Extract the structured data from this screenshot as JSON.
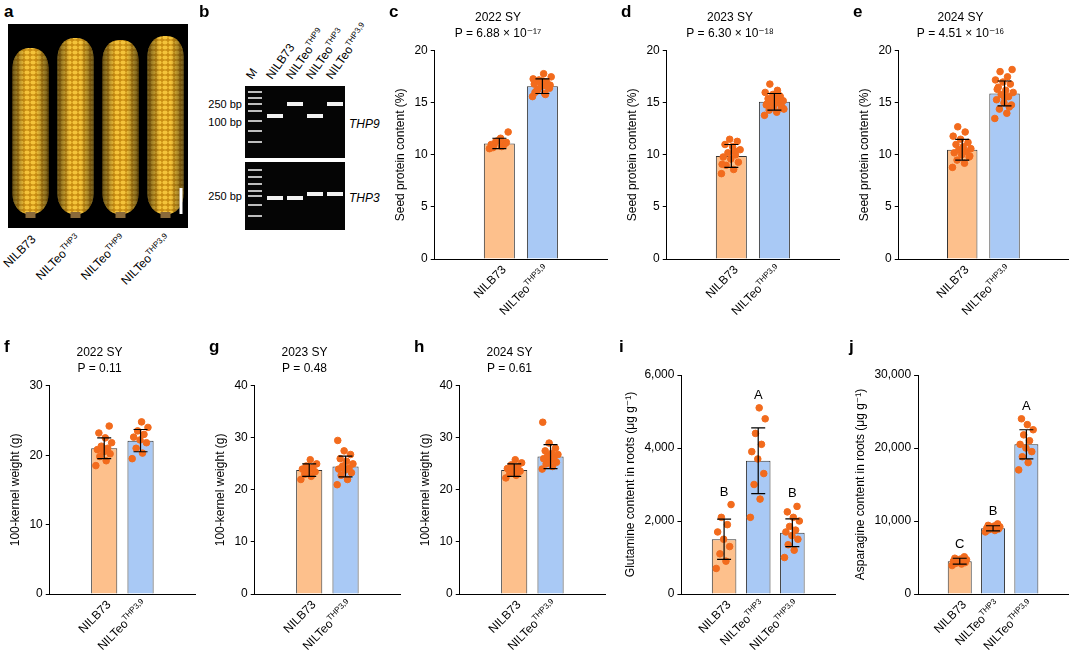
{
  "panel_a": {
    "panel": "a",
    "labels": [
      {
        "text": "NILB73"
      },
      {
        "text": "NILTeo",
        "sup": "THP3"
      },
      {
        "text": "NILTeo",
        "sup": "THP9"
      },
      {
        "text": "NILTeo",
        "sup": "THP3,9"
      }
    ]
  },
  "panel_b": {
    "panel": "b",
    "ladder_label": "M",
    "lanes": [
      {
        "text": "NILB73"
      },
      {
        "text": "NILTeo",
        "sup": "THP9"
      },
      {
        "text": "NILTeo",
        "sup": "THP3"
      },
      {
        "text": "NILTeo",
        "sup": "THP3,9"
      }
    ],
    "size_labels_top": [
      "250 bp",
      "100 bp"
    ],
    "size_labels_bottom": [
      "250 bp"
    ],
    "genes": [
      "THP9",
      "THP3"
    ]
  },
  "chart_data": [
    {
      "panel": "c",
      "type": "bar",
      "title": "2022 SY",
      "annotation": "P = 6.88 × 10⁻¹⁷",
      "y_label": "Seed protein content (%)",
      "categories": [
        {
          "text": "NILB73"
        },
        {
          "text": "NILTeo",
          "sup": "THP3,9"
        }
      ],
      "values": [
        11.1,
        16.6
      ],
      "errors": [
        0.5,
        0.7
      ],
      "points": [
        [
          10.6,
          10.8,
          11.0,
          11.2,
          11.4,
          11.0,
          10.9,
          11.3,
          12.2,
          11.6,
          10.7,
          11.1
        ],
        [
          15.6,
          15.9,
          16.2,
          16.4,
          16.6,
          16.8,
          17.0,
          17.2,
          17.5,
          17.8,
          16.1,
          16.5,
          16.9,
          17.3,
          15.8,
          16.3,
          16.7,
          17.1,
          16.0,
          16.6
        ]
      ],
      "colors": [
        "#fdc08c",
        "#a9c9f5"
      ],
      "ylim": [
        0,
        20
      ],
      "yticks": [
        0,
        5,
        10,
        15,
        20
      ],
      "grid": false
    },
    {
      "panel": "d",
      "type": "bar",
      "title": "2023 SY",
      "annotation": "P = 6.30 × 10⁻¹⁸",
      "y_label": "Seed protein content (%)",
      "categories": [
        {
          "text": "NILB73"
        },
        {
          "text": "NILTeo",
          "sup": "THP3,9"
        }
      ],
      "values": [
        9.9,
        15.1
      ],
      "errors": [
        1.1,
        0.8
      ],
      "points": [
        [
          8.2,
          8.6,
          9.0,
          9.3,
          9.6,
          9.8,
          10.0,
          10.2,
          10.5,
          10.8,
          11.0,
          11.3,
          11.5,
          9.1,
          10.4
        ],
        [
          13.8,
          14.1,
          14.3,
          14.5,
          14.7,
          14.8,
          15.0,
          15.1,
          15.2,
          15.3,
          15.4,
          15.6,
          15.8,
          16.0,
          16.2,
          16.8,
          14.6,
          15.5,
          14.9,
          15.7,
          15.0,
          14.4
        ]
      ],
      "colors": [
        "#fdc08c",
        "#a9c9f5"
      ],
      "ylim": [
        0,
        20
      ],
      "yticks": [
        0,
        5,
        10,
        15,
        20
      ],
      "grid": false
    },
    {
      "panel": "e",
      "type": "bar",
      "title": "2024 SY",
      "annotation": "P = 4.51 × 10⁻¹⁶",
      "y_label": "Seed protein content (%)",
      "categories": [
        {
          "text": "NILB73"
        },
        {
          "text": "NILTeo",
          "sup": "THP3,9"
        }
      ],
      "values": [
        10.5,
        15.9
      ],
      "errors": [
        1.0,
        1.2
      ],
      "points": [
        [
          8.8,
          9.2,
          9.5,
          9.8,
          10.0,
          10.2,
          10.3,
          10.5,
          10.6,
          10.8,
          11.0,
          11.2,
          11.5,
          11.8,
          12.2,
          12.7,
          9.9,
          10.4
        ],
        [
          13.5,
          14.0,
          14.4,
          14.8,
          15.0,
          15.3,
          15.6,
          15.8,
          16.0,
          16.2,
          16.5,
          16.8,
          17.0,
          17.2,
          17.5,
          18.0,
          18.2,
          15.5,
          16.3,
          14.6
        ]
      ],
      "colors": [
        "#fdc08c",
        "#a9c9f5"
      ],
      "ylim": [
        0,
        20
      ],
      "yticks": [
        0,
        5,
        10,
        15,
        20
      ],
      "grid": false
    },
    {
      "panel": "f",
      "type": "bar",
      "title": "2022 SY",
      "annotation": "P = 0.11",
      "y_label": "100-kernel weight (g)",
      "categories": [
        {
          "text": "NILB73"
        },
        {
          "text": "NILTeo",
          "sup": "THP3,9"
        }
      ],
      "values": [
        21.0,
        22.1
      ],
      "errors": [
        1.5,
        1.6
      ],
      "points": [
        [
          18.5,
          19.2,
          19.8,
          20.2,
          20.5,
          20.8,
          21.0,
          21.3,
          21.8,
          22.5,
          23.2,
          24.2
        ],
        [
          19.5,
          20.3,
          21.0,
          21.8,
          22.2,
          22.6,
          23.0,
          23.5,
          24.0,
          24.8
        ]
      ],
      "colors": [
        "#fdc08c",
        "#a9c9f5"
      ],
      "ylim": [
        0,
        30
      ],
      "yticks": [
        0,
        10,
        20,
        30
      ],
      "grid": false
    },
    {
      "panel": "g",
      "type": "bar",
      "title": "2023 SY",
      "annotation": "P = 0.48",
      "y_label": "100-kernel weight (g)",
      "categories": [
        {
          "text": "NILB73"
        },
        {
          "text": "NILTeo",
          "sup": "THP3,9"
        }
      ],
      "values": [
        23.8,
        24.5
      ],
      "errors": [
        1.2,
        2.0
      ],
      "points": [
        [
          22.0,
          22.6,
          23.0,
          23.5,
          23.8,
          24.0,
          24.3,
          24.6,
          25.0,
          25.8
        ],
        [
          21.0,
          22.0,
          22.8,
          23.3,
          23.8,
          24.0,
          24.2,
          24.6,
          25.0,
          25.5,
          26.0,
          26.8,
          27.5,
          29.5
        ]
      ],
      "colors": [
        "#fdc08c",
        "#a9c9f5"
      ],
      "ylim": [
        0,
        40
      ],
      "yticks": [
        0,
        10,
        20,
        30,
        40
      ],
      "grid": false
    },
    {
      "panel": "h",
      "type": "bar",
      "title": "2024 SY",
      "annotation": "P = 0.61",
      "y_label": "100-kernel weight (g)",
      "categories": [
        {
          "text": "NILB73"
        },
        {
          "text": "NILTeo",
          "sup": "THP3,9"
        }
      ],
      "values": [
        23.8,
        26.4
      ],
      "errors": [
        1.2,
        2.3
      ],
      "points": [
        [
          22.3,
          22.8,
          23.2,
          23.6,
          23.9,
          24.1,
          24.4,
          24.8,
          25.2,
          25.8
        ],
        [
          24.0,
          24.5,
          25.0,
          25.3,
          25.7,
          26.0,
          26.2,
          26.5,
          26.8,
          27.0,
          27.5,
          28.0,
          29.0,
          33.0
        ]
      ],
      "colors": [
        "#fdc08c",
        "#a9c9f5"
      ],
      "ylim": [
        0,
        40
      ],
      "yticks": [
        0,
        10,
        20,
        30,
        40
      ],
      "grid": false
    },
    {
      "panel": "i",
      "type": "bar",
      "y_label": "Glutamine content in roots (μg g⁻¹)",
      "categories": [
        {
          "text": "NILB73"
        },
        {
          "text": "NILTeo",
          "sup": "THP3"
        },
        {
          "text": "NILTeo",
          "sup": "THP3,9"
        }
      ],
      "values": [
        1500,
        3650,
        1680
      ],
      "errors": [
        550,
        900,
        380
      ],
      "points": [
        [
          700,
          900,
          1100,
          1300,
          1500,
          1700,
          1900,
          2100,
          2450
        ],
        [
          2100,
          2600,
          3000,
          3300,
          3700,
          3900,
          4100,
          4400,
          4800,
          5100
        ],
        [
          1000,
          1200,
          1350,
          1500,
          1600,
          1700,
          1750,
          1850,
          2000,
          2100,
          2250,
          2400
        ]
      ],
      "group_labels": [
        "B",
        "A",
        "B"
      ],
      "colors": [
        "#fdc08c",
        "#a9c9f5",
        "#a9c9f5"
      ],
      "ylim": [
        0,
        6000
      ],
      "yticks": [
        0,
        {
          "value": 2000,
          "label": "2,000"
        },
        {
          "value": 4000,
          "label": "4,000"
        },
        {
          "value": 6000,
          "label": "6,000"
        }
      ],
      "grid": false
    },
    {
      "panel": "j",
      "type": "bar",
      "y_label": "Asparagine content in roots (μg g⁻¹)",
      "categories": [
        {
          "text": "NILB73"
        },
        {
          "text": "NILTeo",
          "sup": "THP3"
        },
        {
          "text": "NILTeo",
          "sup": "THP3,9"
        }
      ],
      "values": [
        4500,
        9000,
        20500
      ],
      "errors": [
        400,
        350,
        2000
      ],
      "points": [
        [
          3900,
          4100,
          4200,
          4300,
          4400,
          4500,
          4550,
          4600,
          4700,
          4800,
          4900,
          5100
        ],
        [
          8500,
          8700,
          8800,
          8900,
          9000,
          9000,
          9100,
          9150,
          9200,
          9300,
          9400,
          9600
        ],
        [
          17000,
          18000,
          18800,
          19500,
          20000,
          20500,
          21000,
          21800,
          22500,
          23200,
          24000
        ]
      ],
      "group_labels": [
        "C",
        "B",
        "A"
      ],
      "colors": [
        "#fdc08c",
        "#a9c9f5",
        "#a9c9f5"
      ],
      "ylim": [
        0,
        30000
      ],
      "yticks": [
        0,
        {
          "value": 10000,
          "label": "10,000"
        },
        {
          "value": 20000,
          "label": "20,000"
        },
        {
          "value": 30000,
          "label": "30,000"
        }
      ],
      "grid": false
    }
  ]
}
